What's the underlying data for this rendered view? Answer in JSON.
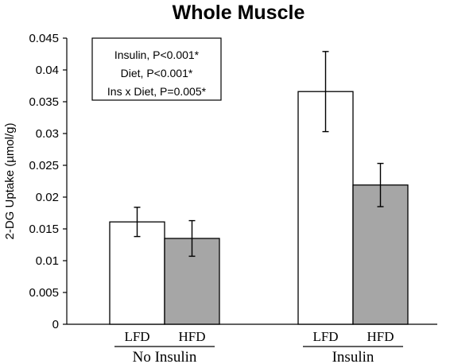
{
  "chart_data": {
    "type": "bar",
    "title": "Whole Muscle",
    "ylabel": "2-DG Uptake (µmol/g)",
    "ylim": [
      0,
      0.045
    ],
    "yticks": [
      "0",
      "0.005",
      "0.01",
      "0.015",
      "0.02",
      "0.025",
      "0.03",
      "0.035",
      "0.04",
      "0.045"
    ],
    "groups": [
      {
        "label": "No Insulin",
        "bars": [
          {
            "label": "LFD",
            "value": 0.0161,
            "error": 0.0023,
            "color": "#ffffff"
          },
          {
            "label": "HFD",
            "value": 0.0135,
            "error": 0.0028,
            "color": "#a6a6a6"
          }
        ]
      },
      {
        "label": "Insulin",
        "bars": [
          {
            "label": "LFD",
            "value": 0.0366,
            "error": 0.0063,
            "color": "#ffffff"
          },
          {
            "label": "HFD",
            "value": 0.0219,
            "error": 0.0034,
            "color": "#a6a6a6"
          }
        ]
      }
    ],
    "annotations": [
      "Insulin, P<0.001*",
      "Diet, P<0.001*",
      "Ins x Diet, P=0.005*"
    ],
    "grid": false,
    "annotation_placement": "top-left"
  }
}
